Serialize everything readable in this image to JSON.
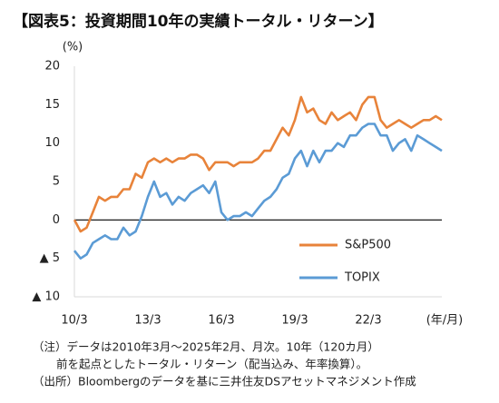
{
  "chart_data": {
    "type": "line",
    "title": "【図表5：投資期間10年の実績トータル・リターン】",
    "y_label": "(%)",
    "x_label": "(年/月)",
    "notes": [
      "（注）データは2010年3月～2025年2月、月次。10年（120カ月）",
      "前を起点としたトータル・リターン（配当込み、年率換算）。",
      "（出所）Bloombergのデータを基に三井住友DSアセットマネジメント作成"
    ],
    "categories": [
      "10/3",
      "10/6",
      "10/9",
      "10/12",
      "11/3",
      "11/6",
      "11/9",
      "11/12",
      "12/3",
      "12/6",
      "12/9",
      "12/12",
      "13/3",
      "13/6",
      "13/9",
      "13/12",
      "14/3",
      "14/6",
      "14/9",
      "14/12",
      "15/3",
      "15/6",
      "15/9",
      "15/12",
      "16/3",
      "16/6",
      "16/9",
      "16/12",
      "17/3",
      "17/6",
      "17/9",
      "17/12",
      "18/3",
      "18/6",
      "18/9",
      "18/12",
      "19/3",
      "19/6",
      "19/9",
      "19/12",
      "20/3",
      "20/6",
      "20/9",
      "20/12",
      "21/3",
      "21/6",
      "21/9",
      "21/12",
      "22/3",
      "22/6",
      "22/9",
      "22/12",
      "23/3",
      "23/6",
      "23/9",
      "23/12",
      "24/3",
      "24/6",
      "24/9",
      "24/12",
      "25/2"
    ],
    "xticks": [
      "10/3",
      "13/3",
      "16/3",
      "19/3",
      "22/3"
    ],
    "series": [
      {
        "name": "S&P500",
        "color": "#e8833a",
        "values": [
          0,
          -1.5,
          -1,
          1,
          3,
          2.5,
          3,
          3,
          4,
          4,
          6,
          5.5,
          7.5,
          8,
          7.5,
          8,
          7.5,
          8,
          8,
          8.5,
          8.5,
          8,
          6.5,
          7.5,
          7.5,
          7.5,
          7,
          7.5,
          7.5,
          7.5,
          8,
          9,
          9,
          10.5,
          12,
          11,
          13,
          16,
          14,
          14.5,
          13,
          12.5,
          14,
          13,
          13.5,
          14,
          13,
          15,
          16,
          16,
          13,
          12,
          12.5,
          13,
          12.5,
          12,
          12.5,
          13,
          13,
          13.5,
          13
        ]
      },
      {
        "name": "TOPIX",
        "color": "#5b9bd5",
        "values": [
          -4,
          -5,
          -4.5,
          -3,
          -2.5,
          -2,
          -2.5,
          -2.5,
          -1,
          -2,
          -1.5,
          0.5,
          3,
          5,
          3,
          3.5,
          2,
          3,
          2.5,
          3.5,
          4,
          4.5,
          3.5,
          5,
          1,
          0,
          0.5,
          0.5,
          1,
          0.5,
          1.5,
          2.5,
          3,
          4,
          5.5,
          6,
          8,
          9,
          7,
          9,
          7.5,
          9,
          9,
          10,
          9.5,
          11,
          11,
          12,
          12.5,
          12.5,
          11,
          11,
          9,
          10,
          10.5,
          9,
          11,
          10.5,
          10,
          9.5,
          9
        ]
      }
    ],
    "ylim": [
      -10,
      20
    ],
    "yticks": [
      {
        "value": -10,
        "label": "▲ 10"
      },
      {
        "value": -5,
        "label": "▲ 5"
      },
      0,
      5,
      10,
      15,
      20
    ],
    "grid": false
  }
}
